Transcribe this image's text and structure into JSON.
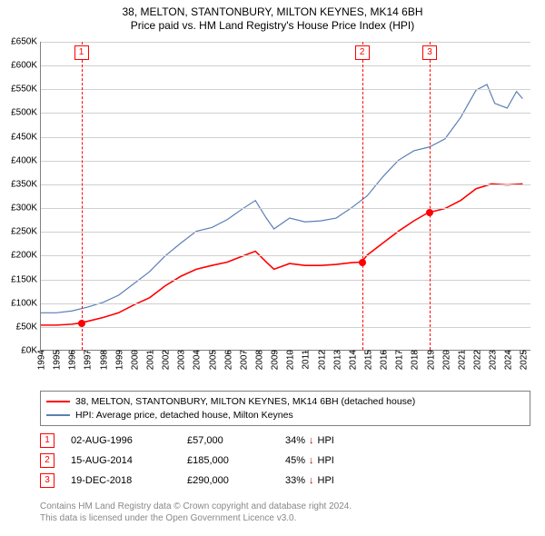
{
  "title": {
    "line1": "38, MELTON, STANTONBURY, MILTON KEYNES, MK14 6BH",
    "line2": "Price paid vs. HM Land Registry's House Price Index (HPI)"
  },
  "chart": {
    "type": "line",
    "background_color": "#ffffff",
    "grid_color": "#d0d0d0",
    "axis_color": "#808080",
    "x": {
      "min": 1994,
      "max": 2025.5,
      "ticks_every": 1,
      "show_half_end": true
    },
    "y": {
      "min": 0,
      "max": 650000,
      "step": 50000,
      "prefix": "£",
      "suffix": "K",
      "divide": 1000
    },
    "series": [
      {
        "name": "price_paid",
        "label": "38, MELTON, STANTONBURY, MILTON KEYNES, MK14 6BH (detached house)",
        "color": "#ff0000",
        "line_width": 1.6,
        "points": [
          [
            1994.0,
            52000
          ],
          [
            1995.0,
            52000
          ],
          [
            1996.0,
            54000
          ],
          [
            1996.6,
            57000
          ],
          [
            1997.0,
            60000
          ],
          [
            1998.0,
            68000
          ],
          [
            1999.0,
            78000
          ],
          [
            2000.0,
            95000
          ],
          [
            2001.0,
            110000
          ],
          [
            2002.0,
            135000
          ],
          [
            2003.0,
            155000
          ],
          [
            2004.0,
            170000
          ],
          [
            2005.0,
            178000
          ],
          [
            2006.0,
            185000
          ],
          [
            2007.0,
            198000
          ],
          [
            2007.8,
            208000
          ],
          [
            2008.5,
            185000
          ],
          [
            2009.0,
            170000
          ],
          [
            2010.0,
            182000
          ],
          [
            2011.0,
            178000
          ],
          [
            2012.0,
            178000
          ],
          [
            2013.0,
            180000
          ],
          [
            2014.0,
            184000
          ],
          [
            2014.63,
            185000
          ],
          [
            2015.0,
            200000
          ],
          [
            2016.0,
            225000
          ],
          [
            2017.0,
            250000
          ],
          [
            2018.0,
            272000
          ],
          [
            2018.95,
            290000
          ],
          [
            2019.0,
            290000
          ],
          [
            2020.0,
            298000
          ],
          [
            2021.0,
            315000
          ],
          [
            2022.0,
            340000
          ],
          [
            2023.0,
            350000
          ],
          [
            2024.0,
            348000
          ],
          [
            2025.0,
            350000
          ]
        ]
      },
      {
        "name": "hpi",
        "label": "HPI: Average price, detached house, Milton Keynes",
        "color": "#5b7fb4",
        "line_width": 1.2,
        "points": [
          [
            1994.0,
            78000
          ],
          [
            1995.0,
            78000
          ],
          [
            1996.0,
            82000
          ],
          [
            1997.0,
            90000
          ],
          [
            1998.0,
            100000
          ],
          [
            1999.0,
            115000
          ],
          [
            2000.0,
            140000
          ],
          [
            2001.0,
            165000
          ],
          [
            2002.0,
            198000
          ],
          [
            2003.0,
            225000
          ],
          [
            2004.0,
            250000
          ],
          [
            2005.0,
            258000
          ],
          [
            2006.0,
            275000
          ],
          [
            2007.0,
            298000
          ],
          [
            2007.8,
            315000
          ],
          [
            2008.5,
            278000
          ],
          [
            2009.0,
            255000
          ],
          [
            2010.0,
            278000
          ],
          [
            2011.0,
            270000
          ],
          [
            2012.0,
            272000
          ],
          [
            2013.0,
            278000
          ],
          [
            2014.0,
            300000
          ],
          [
            2015.0,
            325000
          ],
          [
            2016.0,
            365000
          ],
          [
            2017.0,
            400000
          ],
          [
            2018.0,
            420000
          ],
          [
            2019.0,
            428000
          ],
          [
            2020.0,
            445000
          ],
          [
            2021.0,
            490000
          ],
          [
            2022.0,
            548000
          ],
          [
            2022.7,
            560000
          ],
          [
            2023.2,
            520000
          ],
          [
            2024.0,
            510000
          ],
          [
            2024.6,
            545000
          ],
          [
            2025.0,
            530000
          ]
        ]
      }
    ],
    "sale_markers": [
      {
        "n": "1",
        "x": 1996.6,
        "y": 57000
      },
      {
        "n": "2",
        "x": 2014.63,
        "y": 185000
      },
      {
        "n": "3",
        "x": 2018.97,
        "y": 290000
      }
    ]
  },
  "sales": [
    {
      "n": "1",
      "date": "02-AUG-1996",
      "price": "£57,000",
      "pct": "34%",
      "vs": "HPI"
    },
    {
      "n": "2",
      "date": "15-AUG-2014",
      "price": "£185,000",
      "pct": "45%",
      "vs": "HPI"
    },
    {
      "n": "3",
      "date": "19-DEC-2018",
      "price": "£290,000",
      "pct": "33%",
      "vs": "HPI"
    }
  ],
  "attribution": {
    "line1": "Contains HM Land Registry data © Crown copyright and database right 2024.",
    "line2": "This data is licensed under the Open Government Licence v3.0."
  },
  "icons": {
    "down_arrow": "↓"
  }
}
